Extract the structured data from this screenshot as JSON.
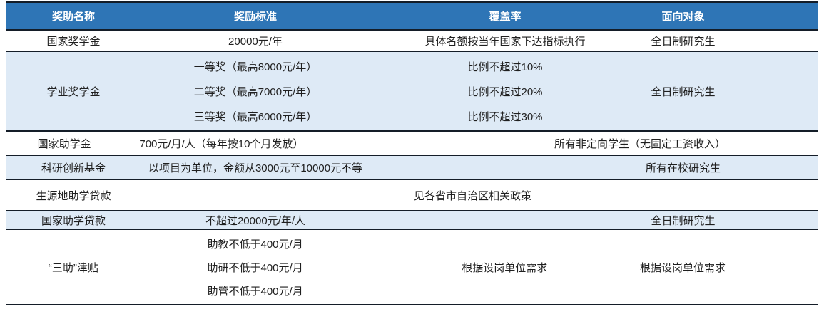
{
  "colors": {
    "header_background": "#2e75b6",
    "header_text": "#ffffff",
    "alternate_row_background": "#deeaf6",
    "border": "#141d28",
    "body_text": "#1f1f1f"
  },
  "table": {
    "headers": {
      "award_name": "奖助名称",
      "standard": "奖励标准",
      "coverage": "覆盖率",
      "target": "面向对象"
    },
    "rows": [
      {
        "name": "国家奖学金",
        "standard": "20000元/年",
        "coverage": "具体名额按当年国家下达指标执行",
        "target": "全日制研究生"
      },
      {
        "name": "学业奖学金",
        "standard_lines": [
          "一等奖（最高8000元/年）",
          "二等奖（最高7000元/年）",
          "三等奖（最高6000元/年）"
        ],
        "coverage_lines": [
          "比例不超过10%",
          "比例不超过20%",
          "比例不超过30%"
        ],
        "target": "全日制研究生"
      },
      {
        "name": "国家助学金",
        "standard": "700元/月/人（每年按10个月发放）",
        "coverage": "",
        "target": "所有非定向学生（无固定工资收入）"
      },
      {
        "name": "科研创新基金",
        "standard": "以项目为单位，金额从3000元至10000元不等",
        "coverage": "",
        "target": "所有在校研究生"
      },
      {
        "name": "生源地助学贷款",
        "note": "见各省市自治区相关政策"
      },
      {
        "name": "国家助学贷款",
        "standard": "不超过20000元/年/人",
        "coverage": "",
        "target": "全日制研究生"
      },
      {
        "name": "“三助”津贴",
        "standard_lines": [
          "助教不低于400元/月",
          "助研不低于400元/月",
          "助管不低于400元/月"
        ],
        "coverage": "根据设岗单位需求",
        "target": "根据设岗单位需求"
      }
    ]
  }
}
